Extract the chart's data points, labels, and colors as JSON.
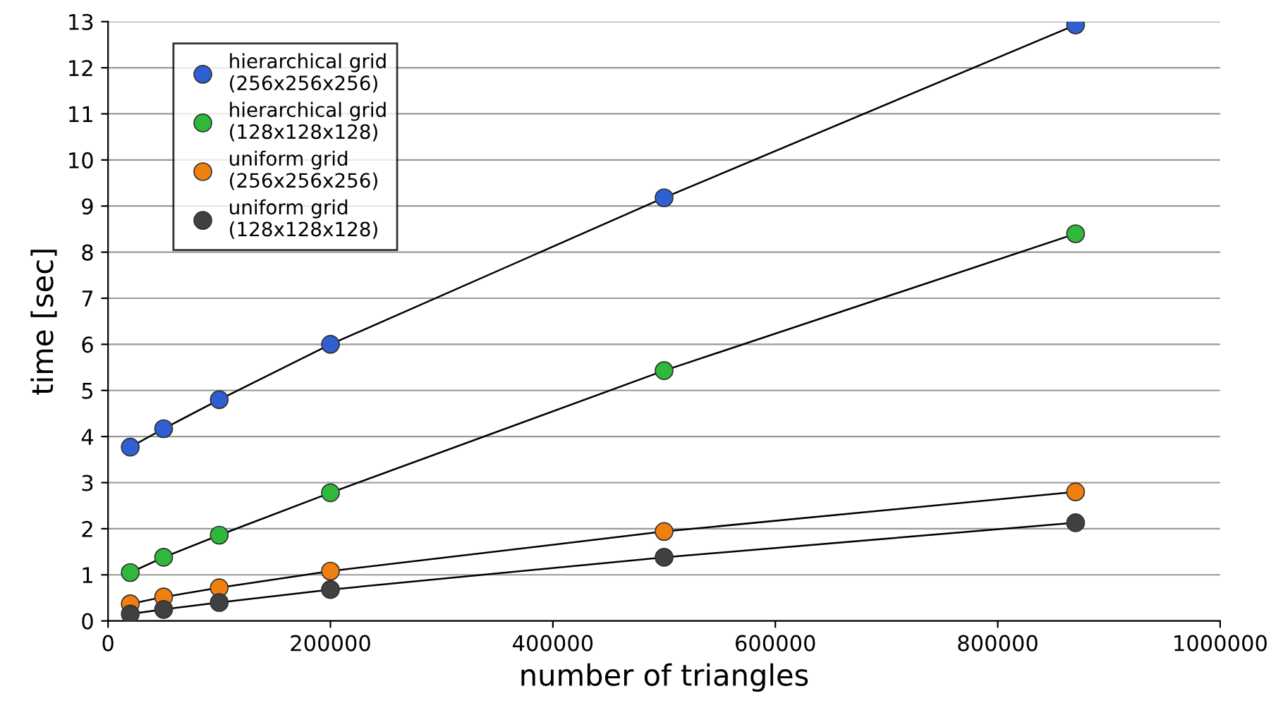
{
  "chart_data": {
    "type": "line",
    "xlabel": "number of triangles",
    "ylabel": "time [sec]",
    "x": [
      20000,
      50000,
      100000,
      200000,
      500000,
      870000
    ],
    "series": [
      {
        "name": "hierarchical grid\n(256x256x256)",
        "color": "#2f5fd0",
        "values": [
          3.77,
          4.17,
          4.8,
          6.0,
          9.18,
          12.93
        ]
      },
      {
        "name": "hierarchical grid\n(128x128x128)",
        "color": "#2fb83a",
        "values": [
          1.05,
          1.38,
          1.86,
          2.78,
          5.43,
          8.4
        ]
      },
      {
        "name": "uniform grid\n(256x256x256)",
        "color": "#f07f10",
        "values": [
          0.37,
          0.52,
          0.72,
          1.08,
          1.94,
          2.8
        ]
      },
      {
        "name": "uniform grid\n(128x128x128)",
        "color": "#404040",
        "values": [
          0.15,
          0.25,
          0.4,
          0.68,
          1.38,
          2.13
        ]
      }
    ],
    "xlim": [
      0,
      1000000
    ],
    "xticks": [
      0,
      200000,
      400000,
      600000,
      800000,
      1000000
    ],
    "ylim": [
      0,
      13
    ],
    "yticks": [
      0,
      1,
      2,
      3,
      4,
      5,
      6,
      7,
      8,
      9,
      10,
      11,
      12,
      13
    ],
    "grid": "y",
    "legend": "top left",
    "marker": "circle",
    "line_style": "solid"
  }
}
